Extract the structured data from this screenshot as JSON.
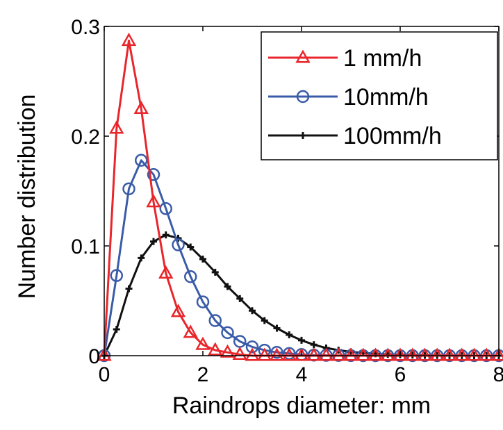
{
  "chart_data": {
    "type": "line",
    "xlabel": "Raindrops diameter: mm",
    "ylabel": "Number distribution",
    "xlim": [
      0,
      8
    ],
    "ylim": [
      0,
      0.3
    ],
    "xticks": [
      0,
      2,
      4,
      6,
      8
    ],
    "yticks": [
      0,
      0.1,
      0.2,
      0.3
    ],
    "xtick_labels": [
      "0",
      "2",
      "4",
      "6",
      "8"
    ],
    "ytick_labels": [
      "0",
      "0.1",
      "0.2",
      "0.3"
    ],
    "grid": false,
    "legend_position": "top-right",
    "series": [
      {
        "name": "1 mm/h",
        "color": "#e8262b",
        "marker": "triangle",
        "x": [
          0,
          0.25,
          0.5,
          0.75,
          1.0,
          1.25,
          1.5,
          1.75,
          2.0,
          2.25,
          2.5,
          2.75,
          3.0,
          3.25,
          3.5,
          3.75,
          4.0,
          4.25,
          4.5,
          4.75,
          5.0,
          5.25,
          5.5,
          5.75,
          6.0,
          6.25,
          6.5,
          6.75,
          7.0,
          7.25,
          7.5,
          7.75,
          8.0
        ],
        "y": [
          0.0,
          0.207,
          0.287,
          0.225,
          0.14,
          0.075,
          0.04,
          0.021,
          0.01,
          0.005,
          0.003,
          0.001,
          0.0,
          0.0,
          0.0,
          0.0,
          0.0,
          0.0,
          0.0,
          0.0,
          0.0,
          0.0,
          0.0,
          0.0,
          0.0,
          0.0,
          0.0,
          0.0,
          0.0,
          0.0,
          0.0,
          0.0,
          0.0
        ]
      },
      {
        "name": "10mm/h",
        "color": "#3a5ca8",
        "marker": "circle",
        "x": [
          0,
          0.25,
          0.5,
          0.75,
          1.0,
          1.25,
          1.5,
          1.75,
          2.0,
          2.25,
          2.5,
          2.75,
          3.0,
          3.25,
          3.5,
          3.75,
          4.0,
          4.25,
          4.5,
          4.75,
          5.0,
          5.25,
          5.5,
          5.75,
          6.0,
          6.25,
          6.5,
          6.75,
          7.0,
          7.25,
          7.5,
          7.75,
          8.0
        ],
        "y": [
          0.0,
          0.073,
          0.152,
          0.178,
          0.165,
          0.134,
          0.101,
          0.072,
          0.049,
          0.032,
          0.021,
          0.013,
          0.008,
          0.005,
          0.003,
          0.002,
          0.001,
          0.0005,
          0.0003,
          0.0002,
          0.0001,
          0.0,
          0.0,
          0.0,
          0.0,
          0.0,
          0.0,
          0.0,
          0.0,
          0.0,
          0.0,
          0.0,
          0.0
        ]
      },
      {
        "name": "100mm/h",
        "color": "#111111",
        "marker": "plus",
        "x": [
          0,
          0.25,
          0.5,
          0.75,
          1.0,
          1.25,
          1.5,
          1.75,
          2.0,
          2.25,
          2.5,
          2.75,
          3.0,
          3.25,
          3.5,
          3.75,
          4.0,
          4.25,
          4.5,
          4.75,
          5.0,
          5.25,
          5.5,
          5.75,
          6.0,
          6.25,
          6.5,
          6.75,
          7.0,
          7.25,
          7.5,
          7.75,
          8.0
        ],
        "y": [
          0.0,
          0.024,
          0.061,
          0.089,
          0.104,
          0.11,
          0.107,
          0.099,
          0.088,
          0.076,
          0.063,
          0.052,
          0.041,
          0.032,
          0.025,
          0.019,
          0.014,
          0.01,
          0.007,
          0.005,
          0.0035,
          0.0025,
          0.0017,
          0.0012,
          0.0008,
          0.0005,
          0.0003,
          0.0002,
          0.0001,
          0.0001,
          0.0,
          0.0,
          0.0
        ]
      }
    ]
  }
}
